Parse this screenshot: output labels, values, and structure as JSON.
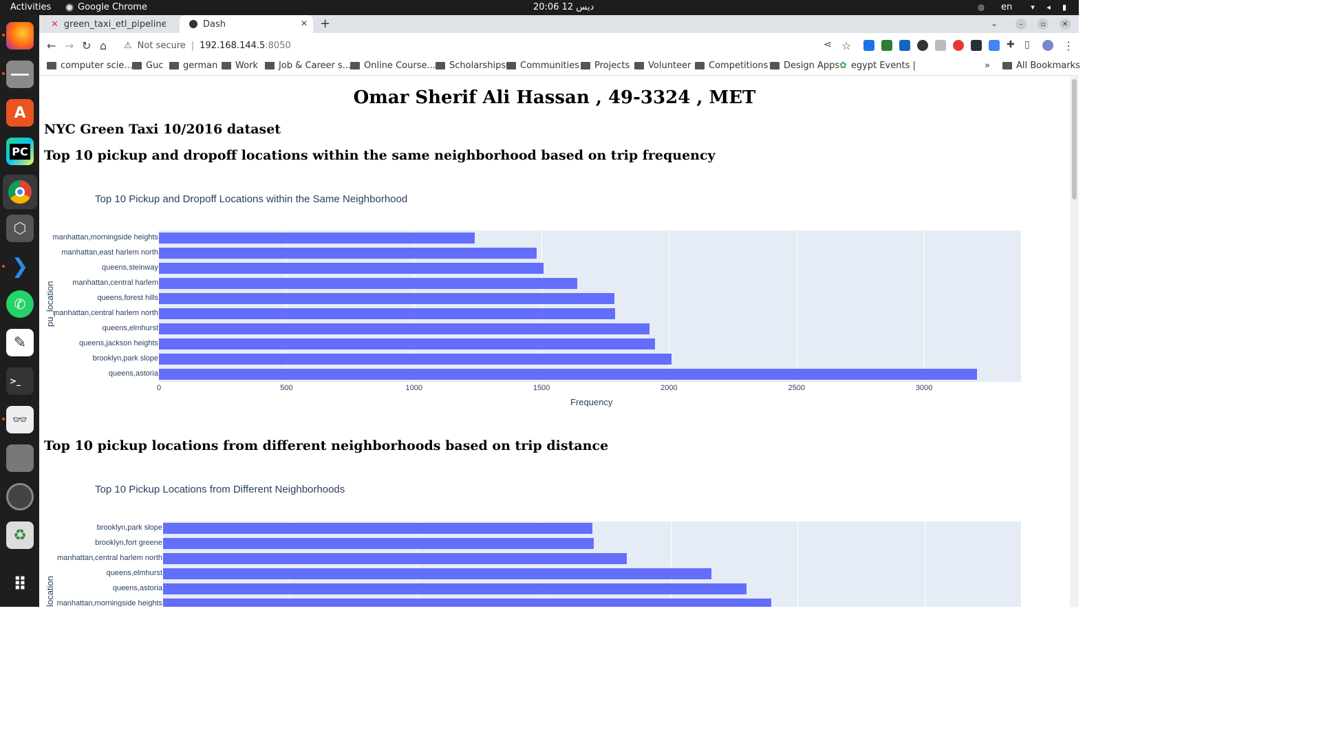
{
  "system": {
    "activities": "Activities",
    "app_name": "Google Chrome",
    "clock": "20:06  12 دیس",
    "lang": "en"
  },
  "browser": {
    "tabs": [
      {
        "title": "green_taxi_etl_pipeline -"
      },
      {
        "title": "Dash"
      }
    ],
    "security_label": "Not secure",
    "url_host": "192.168.144.5",
    "url_port": ":8050",
    "bookmarks": [
      "computer scie...",
      "Guc",
      "german",
      "Work",
      "Job & Career s...",
      "Online Course...",
      "Scholarships",
      "Communities",
      "Projects",
      "Volunteer",
      "Competitions",
      "Design Apps",
      "egypt Events |"
    ],
    "more": "»",
    "all_bookmarks": "All Bookmarks"
  },
  "page": {
    "title": "Omar Sherif Ali Hassan , 49-3324 , MET",
    "dataset": "NYC Green Taxi 10/2016 dataset",
    "section1": "Top 10 pickup and dropoff locations within the same neighborhood based on trip frequency",
    "section2": "Top 10 pickup locations from different neighborhoods based on trip distance"
  },
  "chart_data": [
    {
      "type": "bar",
      "orientation": "horizontal",
      "title": "Top 10 Pickup and Dropoff Locations within the Same Neighborhood",
      "xlabel": "Frequency",
      "ylabel": "pu_location",
      "xlim": [
        0,
        3380
      ],
      "xticks": [
        "0",
        "500",
        "1000",
        "1500",
        "2000",
        "2500",
        "3000"
      ],
      "grid": true,
      "categories": [
        "manhattan,morningside heights",
        "manhattan,east harlem north",
        "queens,steinway",
        "manhattan,central harlem",
        "queens,forest hills",
        "manhattan,central harlem north",
        "queens,elmhurst",
        "queens,jackson heights",
        "brooklyn,park slope",
        "queens,astoria"
      ],
      "values": [
        1237,
        1480,
        1508,
        1640,
        1786,
        1788,
        1922,
        1945,
        2010,
        3208
      ]
    },
    {
      "type": "bar",
      "orientation": "horizontal",
      "title": "Top 10 Pickup Locations from Different Neighborhoods",
      "xlabel": "",
      "ylabel": "location",
      "xlim": [
        0,
        3380
      ],
      "grid": true,
      "categories": [
        "brooklyn,park slope",
        "brooklyn,fort greene",
        "manhattan,central harlem north",
        "queens,elmhurst",
        "queens,astoria",
        "manhattan,morningside heights"
      ],
      "values": [
        1690,
        1698,
        1827,
        2160,
        2298,
        2397
      ]
    }
  ]
}
